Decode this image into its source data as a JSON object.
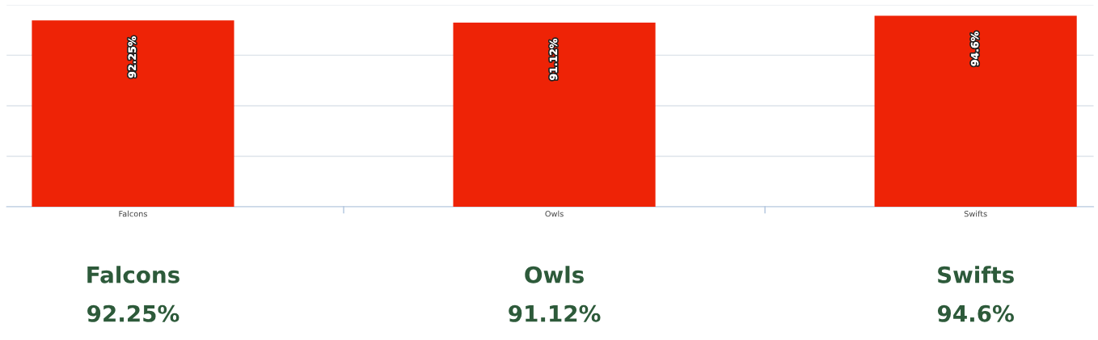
{
  "chart_data": [
    {
      "type": "bar",
      "categories": [
        "Falcons",
        "Owls",
        "Swifts"
      ],
      "values": [
        92.25,
        91.12,
        94.6
      ],
      "color": "#ee2306",
      "value_labels": [
        "92.25%",
        "91.12%",
        "94.6%"
      ],
      "ylim": [
        0,
        100
      ],
      "yticks": [
        {
          "value": 0,
          "label": null
        },
        {
          "value": 25,
          "label": null
        },
        {
          "value": 50,
          "label": null
        },
        {
          "value": 75,
          "label": null
        },
        {
          "value": 100,
          "label": null
        }
      ],
      "grid": "y",
      "tick_labels": "x"
    },
    {
      "type": "other",
      "annotations": [
        "Falcons",
        "92.25%",
        "Owls",
        "91.12%",
        "Swifts",
        "94.6%"
      ]
    }
  ]
}
